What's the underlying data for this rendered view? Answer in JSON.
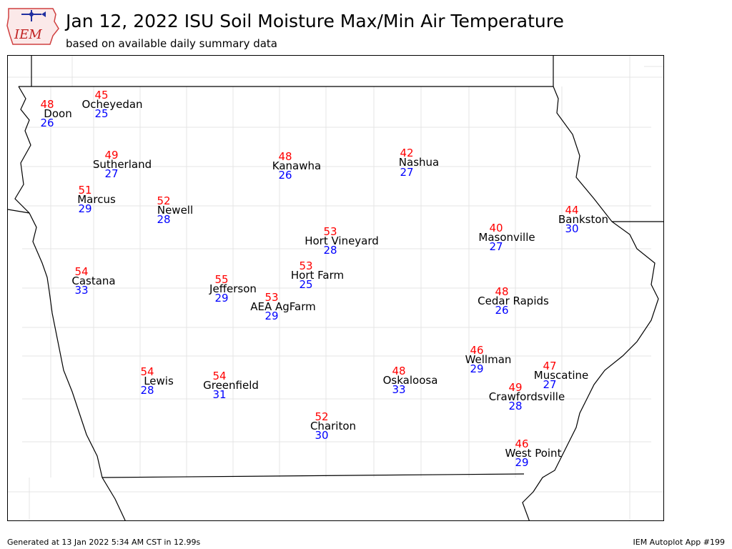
{
  "header": {
    "title": "Jan 12, 2022 ISU Soil Moisture Max/Min Air Temperature",
    "subtitle": "based on available daily summary data",
    "logo_text": "IEM"
  },
  "footer": {
    "generated": "Generated at 13 Jan 2022 5:34 AM CST in 12.99s",
    "app": "IEM Autoplot App #199"
  },
  "colors": {
    "high": "#ff0000",
    "low": "#0000ff",
    "name": "#000000"
  },
  "stations": [
    {
      "name": "Doon",
      "high": "48",
      "low": "26"
    },
    {
      "name": "Ocheyedan",
      "high": "45",
      "low": "25"
    },
    {
      "name": "Sutherland",
      "high": "49",
      "low": "27"
    },
    {
      "name": "Kanawha",
      "high": "48",
      "low": "26"
    },
    {
      "name": "Nashua",
      "high": "42",
      "low": "27"
    },
    {
      "name": "Marcus",
      "high": "51",
      "low": "29"
    },
    {
      "name": "Newell",
      "high": "52",
      "low": "28"
    },
    {
      "name": "Bankston",
      "high": "44",
      "low": "30"
    },
    {
      "name": "Hort Vineyard",
      "high": "53",
      "low": "28"
    },
    {
      "name": "Masonville",
      "high": "40",
      "low": "27"
    },
    {
      "name": "Castana",
      "high": "54",
      "low": "33"
    },
    {
      "name": "Hort Farm",
      "high": "53",
      "low": "25"
    },
    {
      "name": "Jefferson",
      "high": "55",
      "low": "29"
    },
    {
      "name": "AEA AgFarm",
      "high": "53",
      "low": "29"
    },
    {
      "name": "Cedar Rapids",
      "high": "48",
      "low": "26"
    },
    {
      "name": "Wellman",
      "high": "46",
      "low": "29"
    },
    {
      "name": "Lewis",
      "high": "54",
      "low": "28"
    },
    {
      "name": "Greenfield",
      "high": "54",
      "low": "31"
    },
    {
      "name": "Oskaloosa",
      "high": "48",
      "low": "33"
    },
    {
      "name": "Muscatine",
      "high": "47",
      "low": "27"
    },
    {
      "name": "Crawfordsville",
      "high": "49",
      "low": "28"
    },
    {
      "name": "Chariton",
      "high": "52",
      "low": "30"
    },
    {
      "name": "West Point",
      "high": "46",
      "low": "29"
    }
  ]
}
